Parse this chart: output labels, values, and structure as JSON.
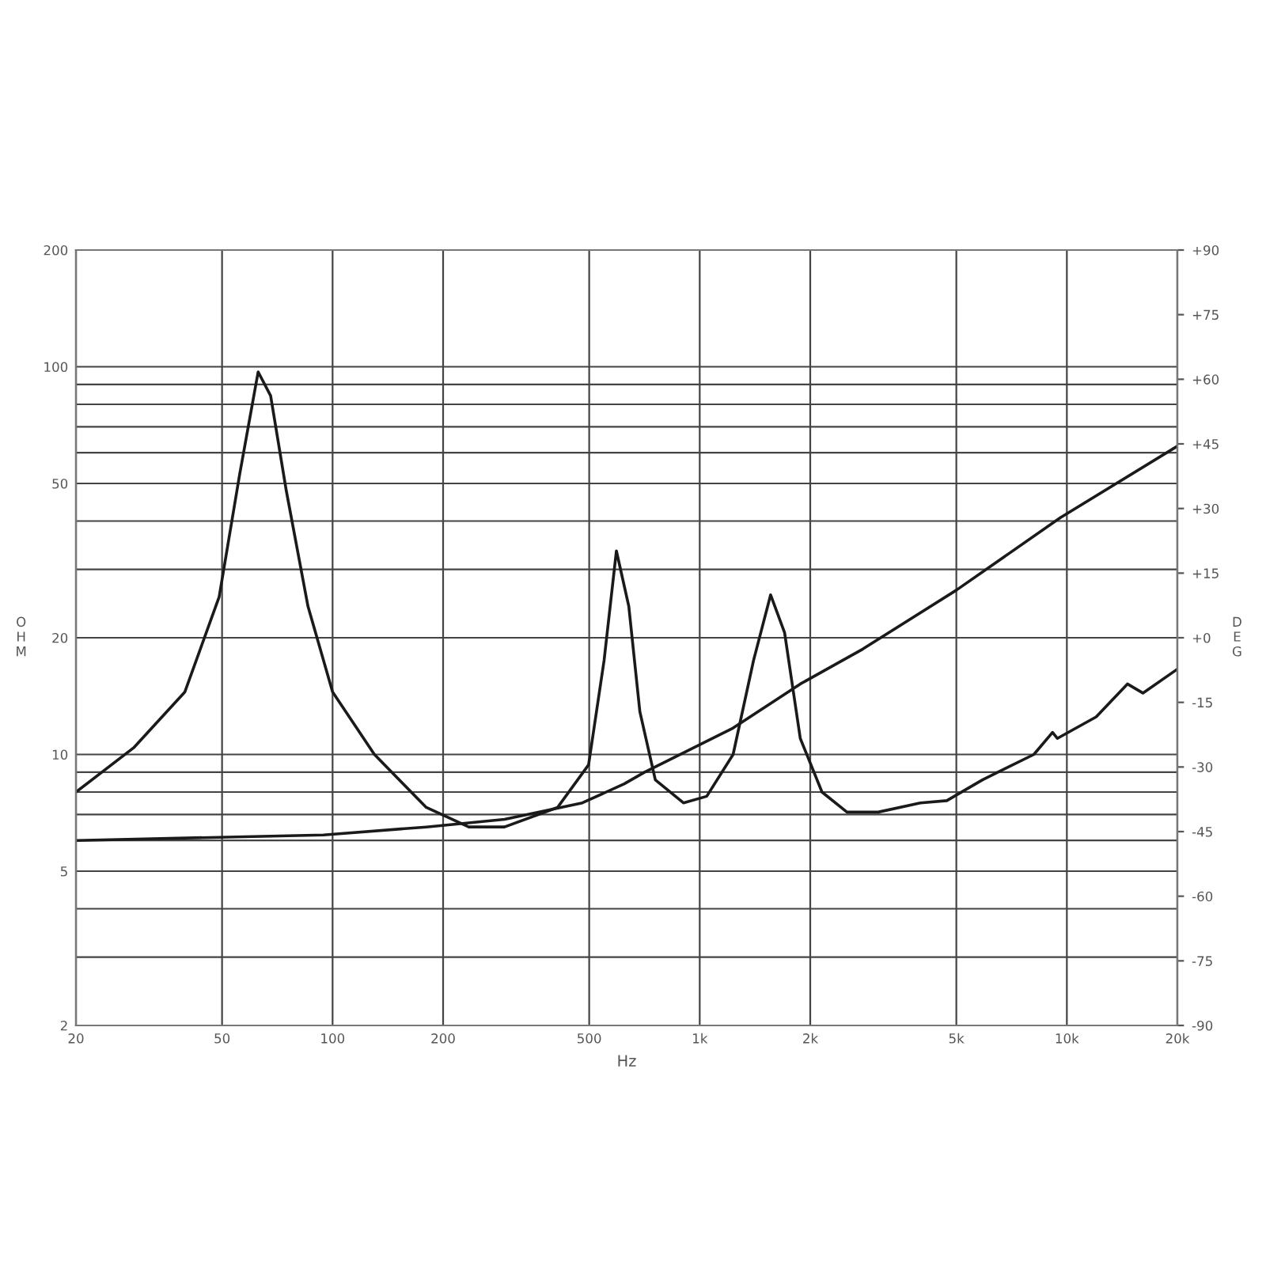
{
  "chart_data": {
    "type": "line",
    "xlabel": "Hz",
    "ylabel": "O\nH\nM",
    "y2label": "D\nE\nG",
    "log": "xy",
    "grid": true,
    "marker": "none",
    "line_style": "solid",
    "xlim": [
      20,
      20000
    ],
    "xticks": [
      20,
      50,
      100,
      200,
      500,
      {
        "value": 1000,
        "label": "1k"
      },
      {
        "value": 2000,
        "label": "2k"
      },
      {
        "value": 5000,
        "label": "5k"
      },
      {
        "value": 10000,
        "label": "10k"
      },
      {
        "value": 20000,
        "label": "20k"
      }
    ],
    "ylim": [
      2,
      200
    ],
    "yticks": [
      2,
      5,
      10,
      20,
      50,
      100,
      200
    ],
    "y2lim": [
      -90,
      90
    ],
    "y2ticks": [
      {
        "value": 90,
        "label": "+90"
      },
      {
        "value": 75,
        "label": "+75"
      },
      {
        "value": 60,
        "label": "+60"
      },
      {
        "value": 45,
        "label": "+45"
      },
      {
        "value": 30,
        "label": "+30"
      },
      {
        "value": 15,
        "label": "+15"
      },
      {
        "value": 0,
        "label": "+0"
      },
      -15,
      -30,
      -45,
      -60,
      -75,
      -90
    ],
    "series": [
      {
        "color": "#1a1a1a",
        "x": [
          20,
          28.7,
          39.6,
          49.1,
          55.8,
          62.7,
          67.8,
          74.8,
          85.7,
          100,
          130,
          180,
          235,
          294,
          410,
          498,
          549,
          593,
          641,
          687,
          757,
          903,
          1045,
          1233,
          1402,
          1560,
          1703,
          1879,
          2153,
          2518,
          3062,
          3990,
          4710,
          5890,
          8130,
          9140,
          9420,
          12020,
          14620,
          16110,
          20000
        ],
        "values": [
          8.0,
          10.4,
          14.5,
          25.5,
          52.6,
          97,
          84.2,
          47.9,
          24.1,
          14.5,
          10.0,
          7.3,
          6.5,
          6.5,
          7.3,
          9.4,
          17.5,
          33.5,
          24.1,
          12.9,
          8.6,
          7.5,
          7.8,
          10.0,
          17.5,
          25.8,
          20.6,
          11.0,
          8.0,
          7.1,
          7.1,
          7.5,
          7.6,
          8.6,
          10.0,
          11.4,
          11.0,
          12.5,
          15.2,
          14.4,
          16.6
        ]
      },
      {
        "color": "#1a1a1a",
        "x": [
          20,
          94.5,
          180,
          294,
          479,
          623,
          708,
          1233,
          1879,
          2780,
          4990,
          9600,
          20000
        ],
        "values": [
          6.0,
          6.2,
          6.5,
          6.8,
          7.5,
          8.4,
          9.0,
          11.7,
          15.2,
          18.7,
          26.5,
          40.8,
          62.4
        ]
      }
    ]
  }
}
